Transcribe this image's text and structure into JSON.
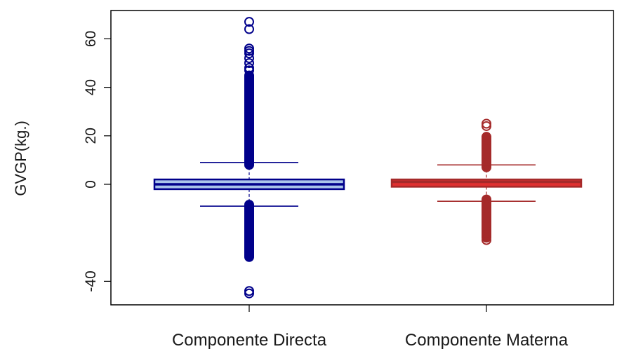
{
  "chart_data": {
    "type": "boxplot",
    "title": "",
    "xlabel": "",
    "ylabel": "GVGP(kg.)",
    "ylim": [
      -49,
      70
    ],
    "yticks": [
      -40,
      0,
      20,
      40,
      60
    ],
    "yticks_labels": [
      "-40",
      "0",
      "20",
      "40",
      "60"
    ],
    "categories": [
      "Componente Directa",
      "Componente Materna"
    ],
    "series": [
      {
        "category": "Componente Directa",
        "q1": -2,
        "median": 0,
        "q3": 2,
        "whisker_low": -9,
        "whisker_high": 9,
        "outliers_low_range": [
          -30,
          -8
        ],
        "outliers_high_range": [
          8,
          45
        ],
        "outliers_extra": [
          -45,
          -44,
          47,
          48,
          50,
          52,
          54,
          55,
          56,
          64,
          67
        ],
        "fill_color": "#a9c5ea",
        "stroke_color": "#00008b"
      },
      {
        "category": "Componente Materna",
        "q1": -1,
        "median": 1,
        "q3": 2,
        "whisker_low": -7,
        "whisker_high": 8,
        "outliers_low_range": [
          -22,
          -6
        ],
        "outliers_high_range": [
          7,
          20
        ],
        "outliers_extra": [
          -23,
          24,
          25
        ],
        "fill_color": "#e03030",
        "stroke_color": "#a52a2a"
      }
    ],
    "grid": false,
    "legend": "none"
  }
}
